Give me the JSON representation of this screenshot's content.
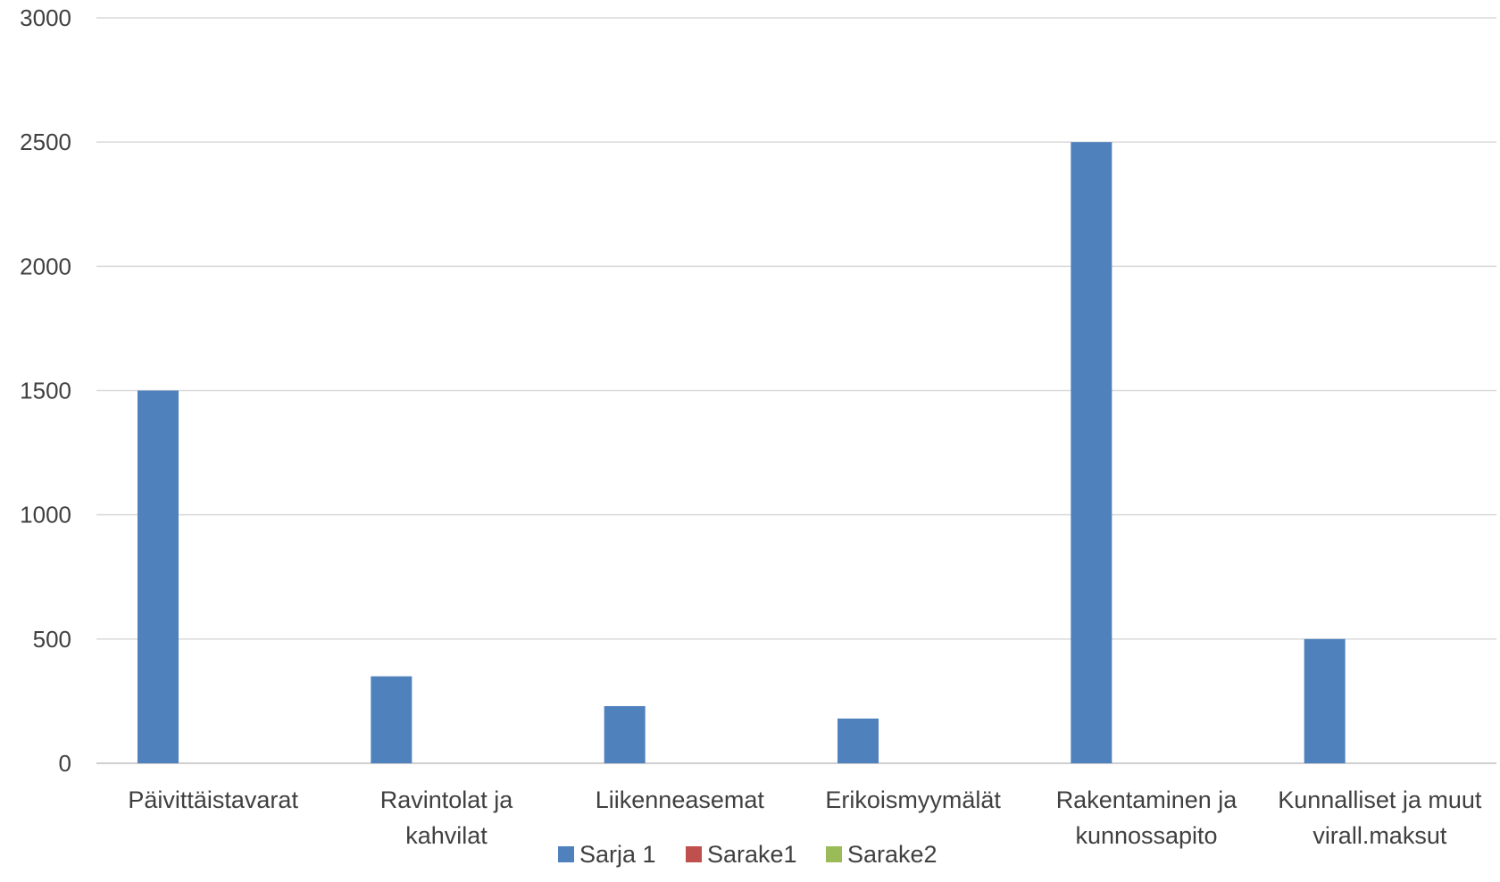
{
  "chart_data": {
    "type": "bar",
    "categories": [
      [
        "Päivittäistavarat"
      ],
      [
        "Ravintolat ja",
        "kahvilat"
      ],
      [
        "Liikenneasemat"
      ],
      [
        "Erikoismyymälät"
      ],
      [
        "Rakentaminen ja",
        "kunnossapito"
      ],
      [
        "Kunnalliset ja muut",
        "virall.maksut"
      ]
    ],
    "series": [
      {
        "name": "Sarja 1",
        "color": "#4F81BD",
        "values": [
          1500,
          350,
          230,
          180,
          2500,
          500
        ]
      },
      {
        "name": "Sarake1",
        "color": "#C0504D",
        "values": [
          0,
          0,
          0,
          0,
          0,
          0
        ]
      },
      {
        "name": "Sarake2",
        "color": "#9BBB59",
        "values": [
          0,
          0,
          0,
          0,
          0,
          0
        ]
      }
    ],
    "ylim": [
      0,
      3000
    ],
    "yticks": [
      0,
      500,
      1000,
      1500,
      2000,
      2500,
      3000
    ],
    "grid": true,
    "legend_position": "bottom"
  }
}
